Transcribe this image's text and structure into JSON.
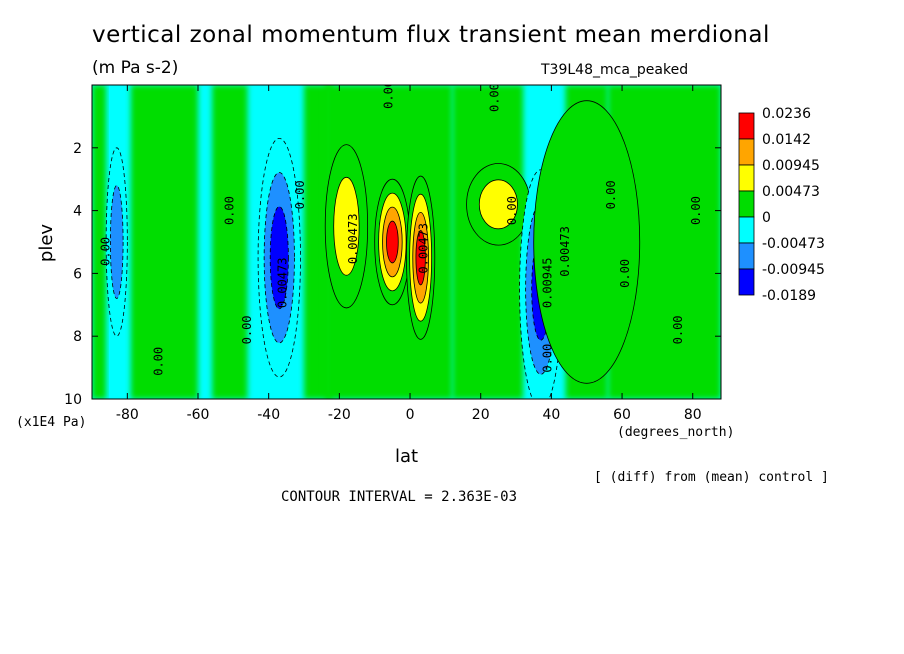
{
  "chart_data": {
    "type": "heatmap",
    "title": "vertical zonal momentum flux transient mean merdional",
    "units": "(m Pa s-2)",
    "run_name": "T39L48_mca_peaked",
    "xlabel": "lat",
    "x_units": "(degrees_north)",
    "ylabel": "plev",
    "y_units": "(x1E4 Pa)",
    "footnote": "[ (diff) from (mean) control ]",
    "contour_interval_text": "CONTOUR INTERVAL = 2.363E-03",
    "xlim": [
      -90,
      88
    ],
    "ylim": [
      0,
      10
    ],
    "y_inverted": true,
    "x_ticks": [
      -80,
      -60,
      -40,
      -20,
      0,
      20,
      40,
      60,
      80
    ],
    "y_ticks": [
      2,
      4,
      6,
      8,
      10
    ],
    "colorbar": {
      "labels": [
        "0.0236",
        "0.0142",
        "0.00945",
        "0.00473",
        "0",
        "-0.00473",
        "-0.00945",
        "-0.0189"
      ],
      "colors": [
        "#ff0000",
        "#ffa500",
        "#ffff00",
        "#00dd00",
        "#00ffff",
        "#1e90ff",
        "#0000ff"
      ]
    },
    "regions": [
      {
        "lat": -5,
        "plev": 5.0,
        "rlat": 5,
        "rplev": 2.0,
        "value": 0.02
      },
      {
        "lat": 3,
        "plev": 5.5,
        "rlat": 4,
        "rplev": 2.6,
        "value": 0.019
      },
      {
        "lat": -18,
        "plev": 4.5,
        "rlat": 6,
        "rplev": 2.6,
        "value": 0.009
      },
      {
        "lat": 25,
        "plev": 3.8,
        "rlat": 9,
        "rplev": 1.3,
        "value": 0.006
      },
      {
        "lat": -37,
        "plev": 5.5,
        "rlat": 6,
        "rplev": 3.8,
        "value": -0.011
      },
      {
        "lat": 37,
        "plev": 6.5,
        "rlat": 6,
        "rplev": 3.8,
        "value": -0.011
      },
      {
        "lat": -83,
        "plev": 5.0,
        "rlat": 3,
        "rplev": 3.0,
        "value": -0.007
      },
      {
        "lat": 50,
        "plev": 5.0,
        "rlat": 15,
        "rplev": 4.5,
        "value": 0.003
      }
    ],
    "contour_labels": [
      {
        "text": "0.00",
        "lat": -5,
        "plev": 0.3
      },
      {
        "text": "0.00",
        "lat": 25,
        "plev": 0.4
      },
      {
        "text": "0.00",
        "lat": -85,
        "plev": 5.3
      },
      {
        "text": "0.00",
        "lat": -50,
        "plev": 4.0
      },
      {
        "text": "0.00",
        "lat": -30,
        "plev": 3.5
      },
      {
        "text": "0.00",
        "lat": -45,
        "plev": 7.8
      },
      {
        "text": "0.00",
        "lat": -70,
        "plev": 8.8
      },
      {
        "text": "0.00473",
        "lat": -35,
        "plev": 6.3
      },
      {
        "text": "0.00473",
        "lat": -15,
        "plev": 4.9
      },
      {
        "text": "0.00473",
        "lat": 5,
        "plev": 5.2
      },
      {
        "text": "0.00945",
        "lat": 40,
        "plev": 6.3
      },
      {
        "text": "0.00473",
        "lat": 45,
        "plev": 5.3
      },
      {
        "text": "0.00",
        "lat": 30,
        "plev": 4.0
      },
      {
        "text": "0.00",
        "lat": 58,
        "plev": 3.5
      },
      {
        "text": "0.00",
        "lat": 62,
        "plev": 6.0
      },
      {
        "text": "0.00",
        "lat": 82,
        "plev": 4.0
      },
      {
        "text": "0.00",
        "lat": 77,
        "plev": 7.8
      },
      {
        "text": "0.00",
        "lat": 40,
        "plev": 8.7
      }
    ]
  }
}
